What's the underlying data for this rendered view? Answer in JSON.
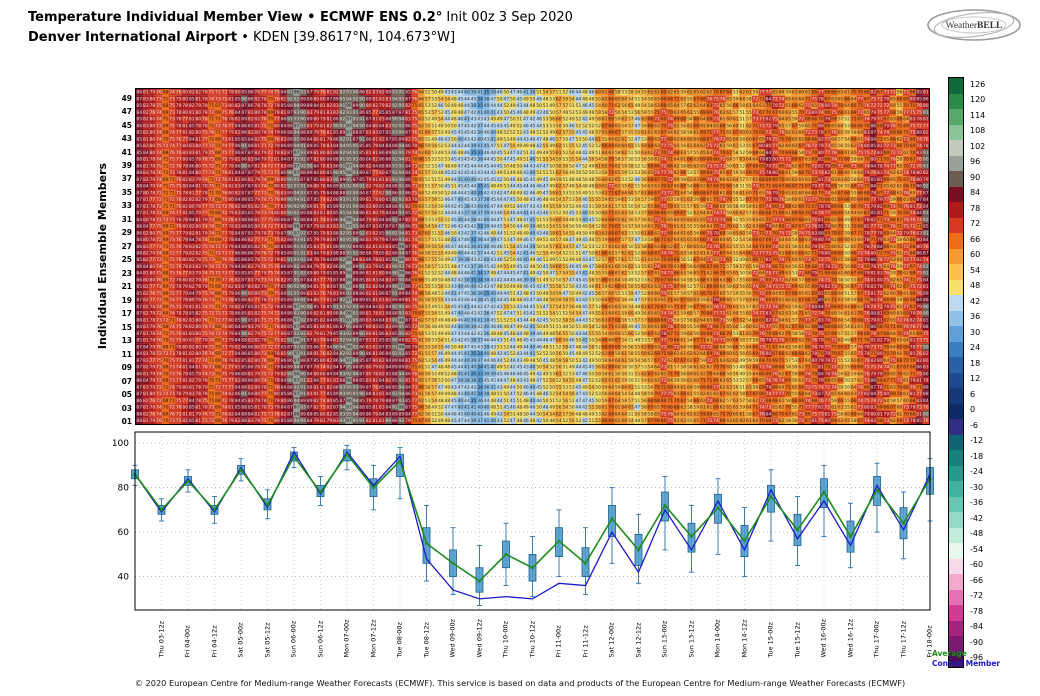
{
  "header": {
    "line1_bold": "Temperature Individual Member View • ECMWF ENS 0.2°",
    "line1_rest": " Init 00z 3 Sep 2020",
    "line2_bold": "Denver International Airport",
    "line2_rest": " • KDEN [39.8617°N, 104.673°W]"
  },
  "logo": {
    "text_a": "Weather",
    "text_b": "BELL"
  },
  "legend": {
    "average": "Average",
    "control": "Control Member",
    "average_color": "#1e8c1e",
    "control_color": "#1a1acd"
  },
  "footer": "© 2020 European Centre for Medium-range Weather Forecasts (ECMWF). This service is based on data and products of the European Centre for Medium-range Weather Forecasts (ECMWF)",
  "colorbar": {
    "values": [
      126,
      120,
      114,
      108,
      102,
      96,
      90,
      84,
      78,
      72,
      66,
      60,
      54,
      48,
      42,
      36,
      30,
      24,
      18,
      12,
      6,
      0,
      -6,
      -12,
      -18,
      -24,
      -30,
      -36,
      -42,
      -48,
      -54,
      -60,
      -66,
      -72,
      -78,
      -84,
      -90,
      -96
    ],
    "colors": [
      "#0e6b39",
      "#2a8c4a",
      "#56a86b",
      "#8cc49a",
      "#c2cabd",
      "#9aa09a",
      "#6b5d52",
      "#7a0f22",
      "#b01a1a",
      "#d63a21",
      "#ef6c1a",
      "#f99932",
      "#fcc04a",
      "#f7e06e",
      "#bcd9f0",
      "#8fc0e8",
      "#5fa0d8",
      "#3a7fc2",
      "#2a62a8",
      "#1d4a8f",
      "#143a7a",
      "#0d2b66",
      "#322d85",
      "#0f6672",
      "#15807c",
      "#259a8c",
      "#3fb3a0",
      "#67c7b4",
      "#95d9c8",
      "#c3ecdd",
      "#e8f8ef",
      "#f6d9e9",
      "#f2a9cd",
      "#e76fb3",
      "#d23b96",
      "#a6237d",
      "#7b1a6e",
      "#4d0f57"
    ]
  },
  "chart_data": [
    {
      "type": "heatmap",
      "ylabel": "Individual Ensemble Members",
      "n_members": 50,
      "member_tick_labels": [
        "01",
        "03",
        "05",
        "07",
        "09",
        "11",
        "13",
        "15",
        "17",
        "19",
        "21",
        "23",
        "25",
        "27",
        "29",
        "31",
        "33",
        "35",
        "37",
        "39",
        "41",
        "43",
        "45",
        "47",
        "49"
      ],
      "n_steps": 121,
      "x_step_hours": 3,
      "x_range": "00z 3 Sep 2020 to 00z 18 Sep 2020",
      "spread_start": 2,
      "spread_end": 9,
      "noise_seed": 7
    },
    {
      "type": "box-line",
      "ylim": [
        25,
        105
      ],
      "y_ticks": [
        40,
        60,
        80,
        100
      ],
      "x_labels": [
        "",
        "Thu 03-12z",
        "Fri 04-00z",
        "Fri 04-12z",
        "Sat 05-00z",
        "Sat 05-12z",
        "Sun 06-00z",
        "Sun 06-12z",
        "Mon 07-00z",
        "Mon 07-12z",
        "Tue 08-00z",
        "Tue 08-12z",
        "Wed 09-00z",
        "Wed 09-12z",
        "Thu 10-00z",
        "Thu 10-12z",
        "Fri 11-00z",
        "Fri 11-12z",
        "Sat 12-00z",
        "Sat 12-12z",
        "Sun 13-00z",
        "Sun 13-12z",
        "Mon 14-00z",
        "Mon 14-12z",
        "Tue 15-00z",
        "Tue 15-12z",
        "Wed 16-00z",
        "Wed 16-12z",
        "Thu 17-00z",
        "Thu 17-12z",
        "Fri 18-00z"
      ],
      "series": [
        {
          "name": "Average",
          "color": "#1e8c1e",
          "values": [
            86,
            70,
            83,
            70,
            88,
            72,
            94,
            78,
            95,
            80,
            92,
            55,
            46,
            38,
            50,
            44,
            56,
            46,
            66,
            52,
            72,
            58,
            71,
            56,
            76,
            61,
            78,
            58,
            79,
            64,
            84
          ]
        },
        {
          "name": "Control Member",
          "color": "#1a1acd",
          "values": [
            86,
            69,
            84,
            69,
            89,
            71,
            96,
            77,
            96,
            81,
            94,
            48,
            34,
            30,
            31,
            30,
            37,
            36,
            60,
            42,
            70,
            52,
            74,
            52,
            79,
            57,
            74,
            54,
            81,
            61,
            86
          ]
        }
      ],
      "box_q1": [
        84,
        68,
        81,
        68,
        86,
        70,
        92,
        76,
        92,
        76,
        85,
        46,
        40,
        33,
        44,
        38,
        49,
        40,
        58,
        45,
        65,
        51,
        64,
        49,
        69,
        54,
        71,
        51,
        72,
        57,
        77
      ],
      "box_q3": [
        88,
        72,
        85,
        72,
        90,
        75,
        96,
        81,
        97,
        84,
        95,
        62,
        52,
        44,
        56,
        50,
        62,
        53,
        72,
        59,
        78,
        64,
        77,
        63,
        81,
        68,
        84,
        65,
        85,
        71,
        89
      ],
      "whisker_lo": [
        81,
        65,
        78,
        64,
        83,
        66,
        89,
        72,
        88,
        70,
        75,
        38,
        32,
        27,
        36,
        31,
        40,
        32,
        46,
        37,
        52,
        42,
        50,
        40,
        56,
        45,
        58,
        44,
        60,
        48,
        65
      ],
      "whisker_hi": [
        90,
        75,
        88,
        76,
        93,
        79,
        98,
        85,
        99,
        90,
        98,
        72,
        62,
        54,
        64,
        58,
        70,
        62,
        80,
        68,
        85,
        72,
        84,
        71,
        88,
        76,
        90,
        73,
        91,
        78,
        93
      ],
      "box_color": "#4f9bca",
      "box_border": "#1c5f8f",
      "whisker_color": "#2b6ea8",
      "grid": true
    }
  ]
}
